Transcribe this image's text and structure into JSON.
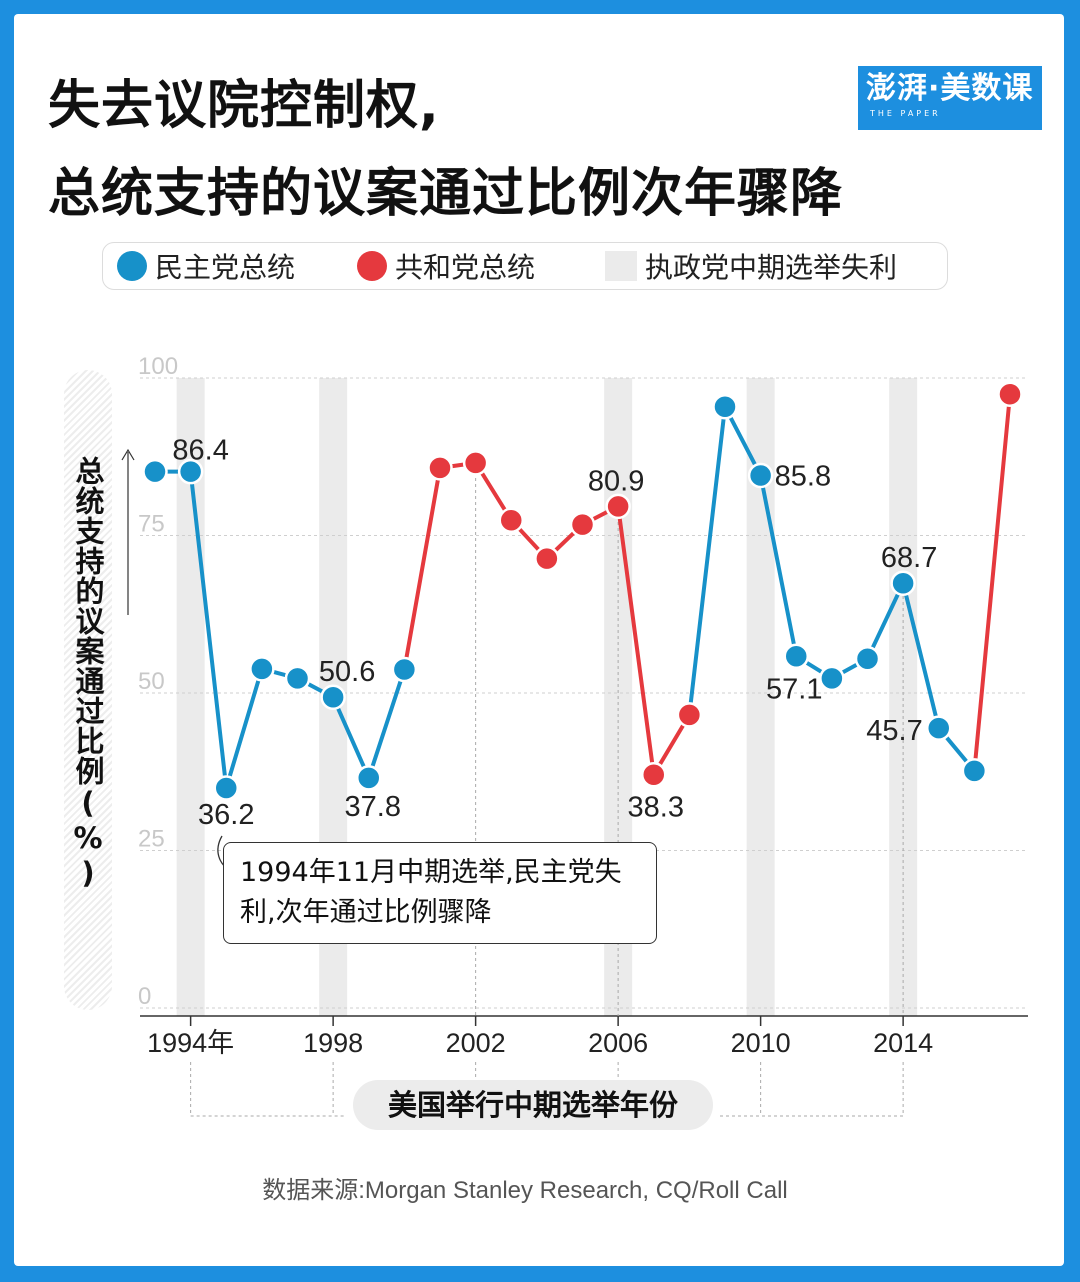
{
  "title": {
    "line1": "失去议院控制权,",
    "line2": "总统支持的议案通过比例次年骤降"
  },
  "logo": {
    "main": "澎湃·美数课",
    "sub": "THE PAPER"
  },
  "legend": {
    "dem": "民主党总统",
    "rep": "共和党总统",
    "midterm_loss": "执政党中期选举失利"
  },
  "colors": {
    "democrat": "#1791c9",
    "republican": "#e5393e",
    "band": "#ebebeb",
    "background": "#1d8fdf"
  },
  "annotation": "1994年11月中期选举,民主党失利,次年通过比例骤降",
  "source": "数据来源:Morgan Stanley Research, CQ/Roll Call",
  "chart_data": {
    "type": "line",
    "ylabel": "总统支持的议案通过比例(%)",
    "xlabel": "美国举行中期选举年份",
    "ylim": [
      0,
      100
    ],
    "yticks": [
      0,
      25,
      50,
      75,
      100
    ],
    "xlim": [
      1993,
      2017
    ],
    "xticks": [
      {
        "year": 1994,
        "label": "1994年"
      },
      {
        "year": 1998,
        "label": "1998"
      },
      {
        "year": 2002,
        "label": "2002"
      },
      {
        "year": 2006,
        "label": "2006"
      },
      {
        "year": 2010,
        "label": "2010"
      },
      {
        "year": 2014,
        "label": "2014"
      }
    ],
    "midterm_loss_years": [
      1994,
      1998,
      2006,
      2010,
      2014
    ],
    "points": [
      {
        "x": 1993,
        "y": 86.4,
        "party": "D"
      },
      {
        "x": 1994,
        "y": 86.4,
        "party": "D",
        "label": "86.4"
      },
      {
        "x": 1995,
        "y": 36.2,
        "party": "D",
        "label": "36.2"
      },
      {
        "x": 1996,
        "y": 55.1,
        "party": "D"
      },
      {
        "x": 1997,
        "y": 53.6,
        "party": "D"
      },
      {
        "x": 1998,
        "y": 50.6,
        "party": "D",
        "label": "50.6"
      },
      {
        "x": 1999,
        "y": 37.8,
        "party": "D",
        "label": "37.8"
      },
      {
        "x": 2000,
        "y": 55.0,
        "party": "D"
      },
      {
        "x": 2001,
        "y": 87.0,
        "party": "R"
      },
      {
        "x": 2002,
        "y": 87.8,
        "party": "R"
      },
      {
        "x": 2003,
        "y": 78.7,
        "party": "R"
      },
      {
        "x": 2004,
        "y": 72.6,
        "party": "R"
      },
      {
        "x": 2005,
        "y": 78.0,
        "party": "R"
      },
      {
        "x": 2006,
        "y": 80.9,
        "party": "R",
        "label": "80.9"
      },
      {
        "x": 2007,
        "y": 38.3,
        "party": "R",
        "label": "38.3"
      },
      {
        "x": 2008,
        "y": 47.8,
        "party": "R"
      },
      {
        "x": 2009,
        "y": 96.7,
        "party": "D"
      },
      {
        "x": 2010,
        "y": 85.8,
        "party": "D",
        "label": "85.8"
      },
      {
        "x": 2011,
        "y": 57.1,
        "party": "D",
        "label": "57.1"
      },
      {
        "x": 2012,
        "y": 53.6,
        "party": "D"
      },
      {
        "x": 2013,
        "y": 56.7,
        "party": "D"
      },
      {
        "x": 2014,
        "y": 68.7,
        "party": "D",
        "label": "68.7"
      },
      {
        "x": 2015,
        "y": 45.7,
        "party": "D",
        "label": "45.7"
      },
      {
        "x": 2016,
        "y": 38.9,
        "party": "D"
      },
      {
        "x": 2017,
        "y": 98.7,
        "party": "R"
      }
    ]
  }
}
